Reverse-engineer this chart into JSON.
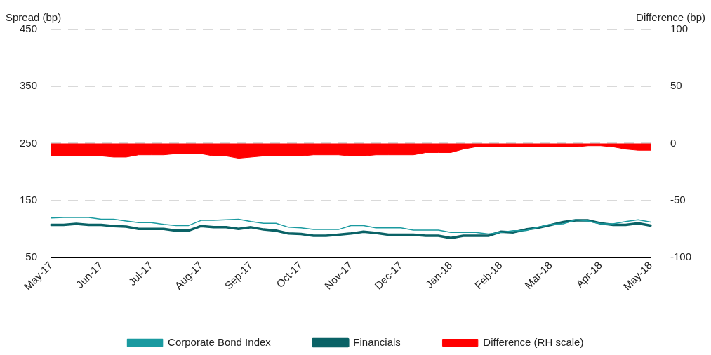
{
  "chart_data": {
    "type": "line",
    "ylabel": "Spread (bp)",
    "y2label": "Difference (bp)",
    "categories": [
      "May-17",
      null,
      null,
      null,
      "Jun-17",
      null,
      null,
      null,
      "Jul-17",
      null,
      null,
      null,
      "Aug-17",
      null,
      null,
      null,
      "Sep-17",
      null,
      null,
      null,
      "Oct-17",
      null,
      null,
      null,
      "Nov-17",
      null,
      null,
      null,
      "Dec-17",
      null,
      null,
      null,
      "Jan-18",
      null,
      null,
      null,
      "Feb-18",
      null,
      null,
      null,
      "Mar-18",
      null,
      null,
      null,
      "Apr-18",
      null,
      null,
      null,
      "May-18"
    ],
    "series": [
      {
        "name": "Difference (RH scale)",
        "type": "area",
        "axis": "y2",
        "color": "#ff0000",
        "values": [
          -11,
          -11,
          -11,
          -11,
          -11,
          -12,
          -12,
          -10,
          -10,
          -10,
          -9,
          -9,
          -9,
          -11,
          -11,
          -13,
          -12,
          -11,
          -11,
          -11,
          -11,
          -10,
          -10,
          -10,
          -11,
          -11,
          -10,
          -10,
          -10,
          -10,
          -8,
          -8,
          -8,
          -5,
          -3,
          -3,
          -3,
          -3,
          -3,
          -3,
          -3,
          -3,
          -3,
          -2,
          -2,
          -3,
          -5,
          -6,
          -6
        ]
      },
      {
        "name": "Corporate Bond Index",
        "color": "#1a9aa0",
        "values": [
          119,
          120,
          120,
          120,
          117,
          117,
          114,
          111,
          111,
          108,
          106,
          106,
          115,
          115,
          116,
          117,
          113,
          110,
          110,
          103,
          102,
          99,
          99,
          99,
          106,
          106,
          102,
          102,
          102,
          98,
          98,
          98,
          94,
          94,
          94,
          91,
          94,
          97,
          97,
          103,
          108,
          109,
          116,
          114,
          109,
          109,
          113,
          116,
          112
        ]
      },
      {
        "name": "Financials",
        "color": "#0a6266",
        "values": [
          107,
          107,
          109,
          107,
          107,
          105,
          104,
          100,
          100,
          100,
          97,
          97,
          105,
          103,
          103,
          100,
          103,
          99,
          97,
          92,
          91,
          88,
          88,
          90,
          92,
          95,
          93,
          90,
          90,
          90,
          88,
          88,
          84,
          88,
          88,
          88,
          95,
          94,
          99,
          102,
          107,
          112,
          115,
          115,
          110,
          107,
          107,
          110,
          106
        ]
      }
    ],
    "ylim": [
      50,
      450
    ],
    "yticks": [
      50,
      150,
      250,
      350,
      450
    ],
    "y2lim": [
      -100,
      100
    ],
    "y2ticks": [
      -100,
      -50,
      0,
      50,
      100
    ],
    "grid": "y",
    "legend": "bottom",
    "marker": "none",
    "line_style": "solid"
  }
}
